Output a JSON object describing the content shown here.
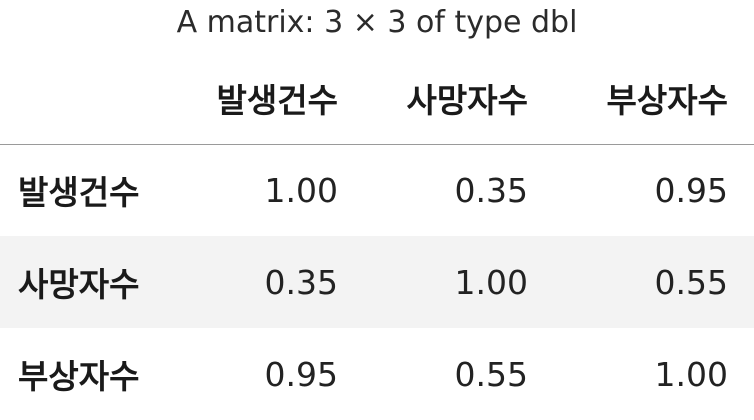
{
  "caption": "A matrix: 3 × 3 of type dbl",
  "columns": [
    "발생건수",
    "사망자수",
    "부상자수"
  ],
  "rows": [
    {
      "label": "발생건수",
      "values": [
        "1.00",
        "0.35",
        "0.95"
      ]
    },
    {
      "label": "사망자수",
      "values": [
        "0.35",
        "1.00",
        "0.55"
      ]
    },
    {
      "label": "부상자수",
      "values": [
        "0.95",
        "0.55",
        "1.00"
      ]
    }
  ],
  "colors": {
    "stripe": "#f3f3f3",
    "header_rule": "#9a9a9a",
    "text": "#1a1a1a"
  }
}
